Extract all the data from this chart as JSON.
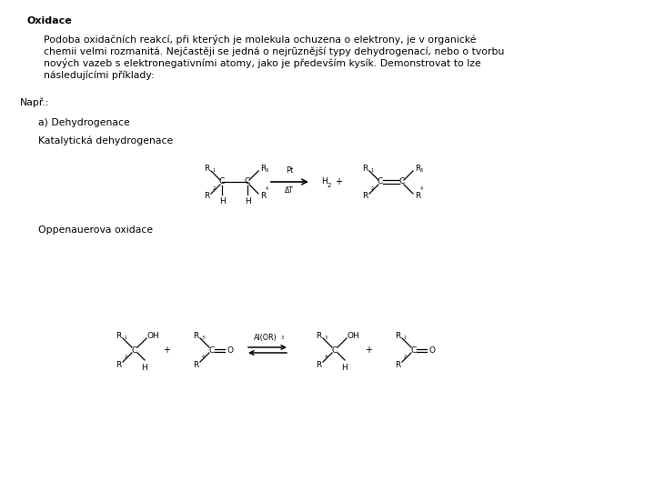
{
  "title": "Oxidace",
  "paragraph_line1": "Podoba oxidačních reakcí, při kterých je molekula ochuzena o elektrony, je v organické",
  "paragraph_line2": "chemii velmi rozmanitá. Nejčastěji se jedná o nejrūznější typy dehydrogenací, nebo o tvorbu",
  "paragraph_line3": "nových vazeb s elektronegativními atomy, jako je především kysík. Demonstrovat to lze",
  "paragraph_line4": "následujícími příklady:",
  "napr": "Např.:",
  "a_label": "a) Dehydrogenace",
  "katalyticka": "Katalytická dehydrogenace",
  "oppenauerova": "Oppenauerova oxidace",
  "bg_color": "#ffffff",
  "text_color": "#000000",
  "title_fontsize": 8,
  "body_fontsize": 7.8,
  "label_fontsize": 7.8,
  "chem_fontsize": 6.5,
  "sub_fontsize": 5.0
}
